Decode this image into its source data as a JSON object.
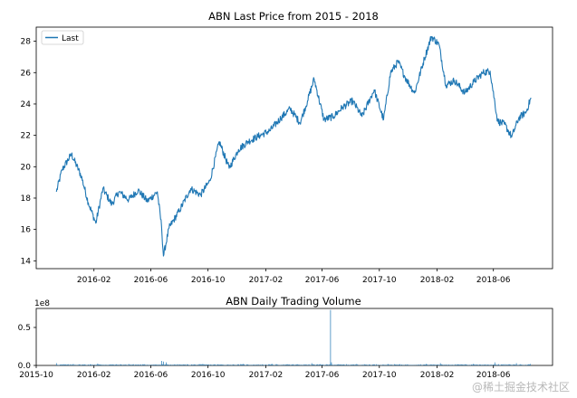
{
  "chart_data": [
    {
      "type": "line",
      "title": "ABN Last Price from 2015 - 2018",
      "xlabel": "",
      "ylabel": "",
      "x_ticks": [
        "2016-02",
        "2016-06",
        "2016-10",
        "2017-02",
        "2017-06",
        "2017-10",
        "2018-02",
        "2018-06"
      ],
      "y_ticks": [
        "14",
        "16",
        "18",
        "20",
        "22",
        "24",
        "26",
        "28"
      ],
      "ylim": [
        13.5,
        28.9
      ],
      "legend": {
        "position": "upper-left",
        "entries": [
          "Last"
        ]
      },
      "color": "#1f77b4",
      "series": [
        {
          "name": "Last",
          "x": [
            "2015-11-13",
            "2015-11-25",
            "2015-12-15",
            "2016-01-05",
            "2016-01-20",
            "2016-02-05",
            "2016-02-20",
            "2016-03-10",
            "2016-03-25",
            "2016-04-15",
            "2016-05-05",
            "2016-05-25",
            "2016-06-15",
            "2016-06-24",
            "2016-06-28",
            "2016-07-10",
            "2016-08-01",
            "2016-08-25",
            "2016-09-15",
            "2016-10-05",
            "2016-10-25",
            "2016-11-15",
            "2016-12-05",
            "2016-12-25",
            "2017-01-20",
            "2017-02-10",
            "2017-03-05",
            "2017-03-25",
            "2017-04-15",
            "2017-05-01",
            "2017-05-15",
            "2017-06-05",
            "2017-06-25",
            "2017-07-15",
            "2017-08-05",
            "2017-08-25",
            "2017-09-20",
            "2017-10-10",
            "2017-10-25",
            "2017-11-10",
            "2017-11-25",
            "2017-12-15",
            "2018-01-05",
            "2018-01-20",
            "2018-02-05",
            "2018-02-20",
            "2018-03-10",
            "2018-04-01",
            "2018-04-20",
            "2018-05-10",
            "2018-05-25",
            "2018-06-10",
            "2018-06-25",
            "2018-07-10",
            "2018-07-25",
            "2018-08-10",
            "2018-08-20"
          ],
          "values": [
            18.4,
            19.8,
            20.8,
            19.4,
            17.7,
            16.4,
            18.6,
            17.6,
            18.4,
            17.9,
            18.5,
            17.8,
            18.4,
            16.2,
            14.3,
            16.1,
            17.2,
            18.6,
            18.2,
            19.1,
            21.6,
            19.9,
            21.1,
            21.6,
            22.0,
            22.3,
            23.1,
            23.7,
            22.8,
            24.2,
            25.6,
            23.0,
            23.2,
            23.8,
            24.2,
            23.2,
            24.9,
            23.0,
            26.0,
            26.7,
            25.7,
            24.7,
            26.9,
            28.3,
            27.8,
            25.2,
            25.5,
            24.7,
            25.4,
            26.0,
            26.1,
            22.9,
            22.7,
            21.9,
            23.1,
            23.5,
            24.4
          ]
        }
      ]
    },
    {
      "type": "bar",
      "title": "ABN Daily Trading Volume",
      "xlabel": "",
      "ylabel": "",
      "y_offset_label": "1e8",
      "x_ticks": [
        "2015-10",
        "2016-02",
        "2016-06",
        "2016-10",
        "2017-02",
        "2017-06",
        "2017-10",
        "2018-02",
        "2018-06"
      ],
      "y_ticks": [
        "0.0",
        "0.5"
      ],
      "ylim": [
        0,
        0.75
      ],
      "color": "#1f77b4",
      "series": [
        {
          "name": "Volume",
          "x": [
            "2015-11-13",
            "2015-12-20",
            "2016-02-10",
            "2016-04-15",
            "2016-06-24",
            "2016-06-28",
            "2016-07-05",
            "2016-09-20",
            "2016-12-15",
            "2017-02-15",
            "2017-05-10",
            "2017-06-20",
            "2017-06-22",
            "2017-08-15",
            "2017-10-20",
            "2018-01-10",
            "2018-02-08",
            "2018-04-20",
            "2018-06-05",
            "2018-07-20",
            "2018-08-20"
          ],
          "values": [
            0.03,
            0.02,
            0.025,
            0.02,
            0.06,
            0.05,
            0.04,
            0.02,
            0.02,
            0.02,
            0.03,
            0.73,
            0.04,
            0.02,
            0.02,
            0.02,
            0.03,
            0.02,
            0.04,
            0.03,
            0.02
          ]
        }
      ]
    }
  ],
  "watermark": "@稀土掘金技术社区"
}
